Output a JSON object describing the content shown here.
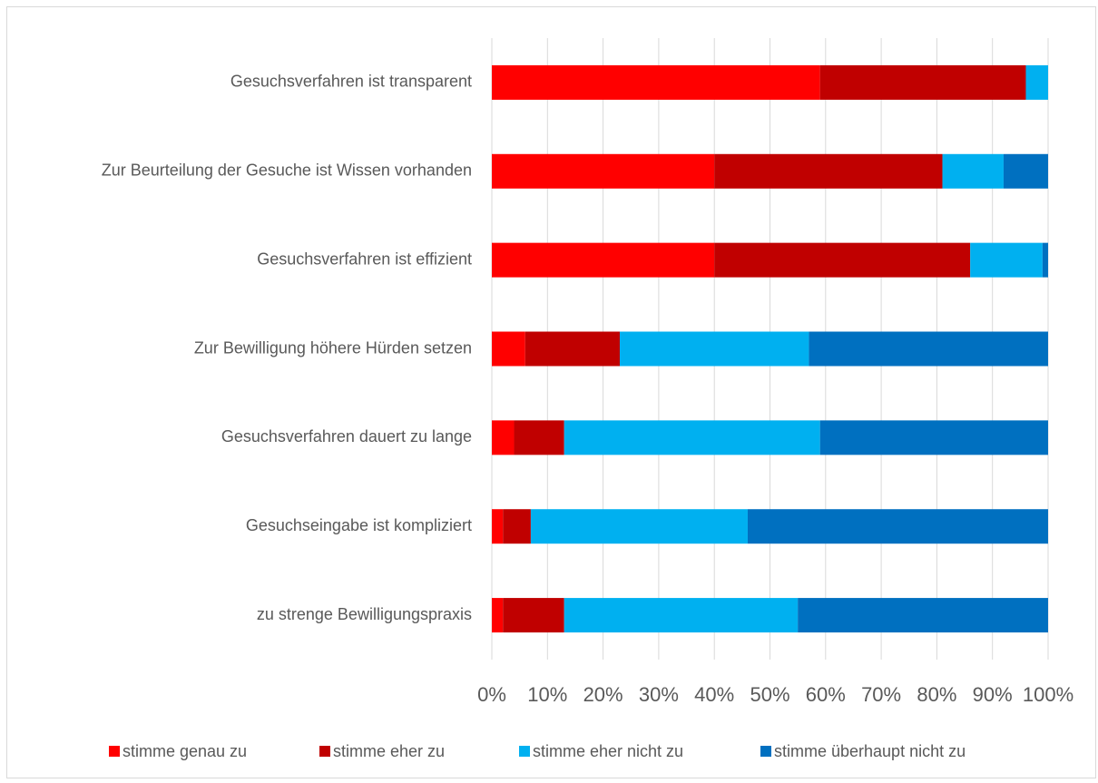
{
  "chart_data": {
    "type": "stacked-bar-horizontal",
    "categories": [
      "Gesuchsverfahren ist transparent",
      "Zur Beurteilung der Gesuche ist Wissen vorhanden",
      "Gesuchsverfahren ist effizient",
      "Zur Bewilligung höhere Hürden setzen",
      "Gesuchsverfahren dauert zu lange",
      "Gesuchseingabe ist kompliziert",
      "zu strenge Bewilligungspraxis"
    ],
    "series": [
      {
        "name": "stimme genau zu",
        "color": "#ff0000",
        "values": [
          59,
          40,
          40,
          6,
          4,
          2,
          2
        ]
      },
      {
        "name": "stimme eher zu",
        "color": "#c00000",
        "values": [
          37,
          41,
          46,
          17,
          9,
          5,
          11
        ]
      },
      {
        "name": "stimme eher nicht zu",
        "color": "#00b0f0",
        "values": [
          4,
          11,
          13,
          34,
          46,
          39,
          42
        ]
      },
      {
        "name": "stimme überhaupt nicht zu",
        "color": "#0070c0",
        "values": [
          0,
          8,
          1,
          43,
          41,
          54,
          45
        ]
      }
    ],
    "xlim": [
      0,
      100
    ],
    "xticks": [
      {
        "value": 0,
        "label": "0%"
      },
      {
        "value": 10,
        "label": "10%"
      },
      {
        "value": 20,
        "label": "20%"
      },
      {
        "value": 30,
        "label": "30%"
      },
      {
        "value": 40,
        "label": "40%"
      },
      {
        "value": 50,
        "label": "50%"
      },
      {
        "value": 60,
        "label": "60%"
      },
      {
        "value": 70,
        "label": "70%"
      },
      {
        "value": 80,
        "label": "80%"
      },
      {
        "value": 90,
        "label": "90%"
      },
      {
        "value": 100,
        "label": "100%"
      }
    ],
    "grid": true,
    "legend": "bottom"
  }
}
